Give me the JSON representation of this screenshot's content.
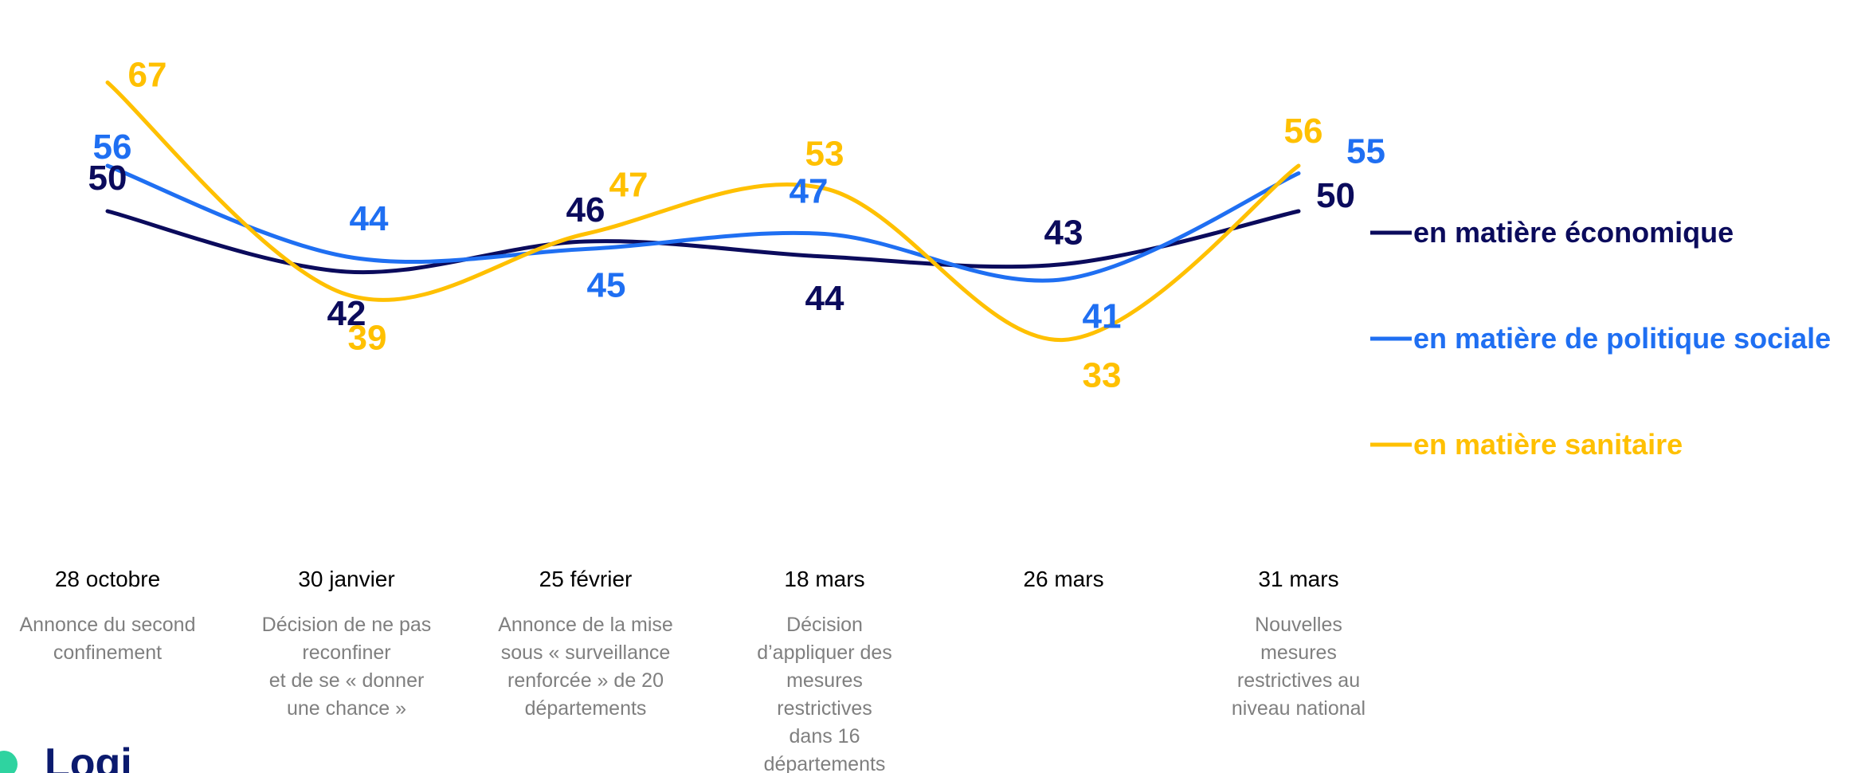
{
  "chart_data": {
    "type": "line",
    "categories": [
      "28 octobre",
      "30 janvier",
      "25 février",
      "18 mars",
      "26 mars",
      "31 mars"
    ],
    "events": [
      [
        "Annonce du second",
        "confinement"
      ],
      [
        "Décision de ne pas",
        "reconfiner",
        "et de se « donner",
        "une chance »"
      ],
      [
        "Annonce de la mise",
        "sous « surveillance",
        "renforcée » de 20",
        "départements"
      ],
      [
        "Décision",
        "d’appliquer des",
        "mesures",
        "restrictives",
        "dans 16",
        "départements"
      ],
      [],
      [
        "Nouvelles",
        "mesures",
        "restrictives au",
        "niveau national"
      ]
    ],
    "series": [
      {
        "name": "en matière économique",
        "color": "#0b0b5c",
        "values": [
          50,
          42,
          46,
          44,
          43,
          50
        ]
      },
      {
        "name": "en matière de politique sociale",
        "color": "#1f6ff2",
        "values": [
          56,
          44,
          45,
          47,
          41,
          55
        ]
      },
      {
        "name": "en matière sanitaire",
        "color": "#ffc000",
        "values": [
          67,
          39,
          47,
          53,
          33,
          56
        ]
      }
    ],
    "legend_position": "right",
    "grid": false
  },
  "logo": {
    "text": "Logi"
  }
}
